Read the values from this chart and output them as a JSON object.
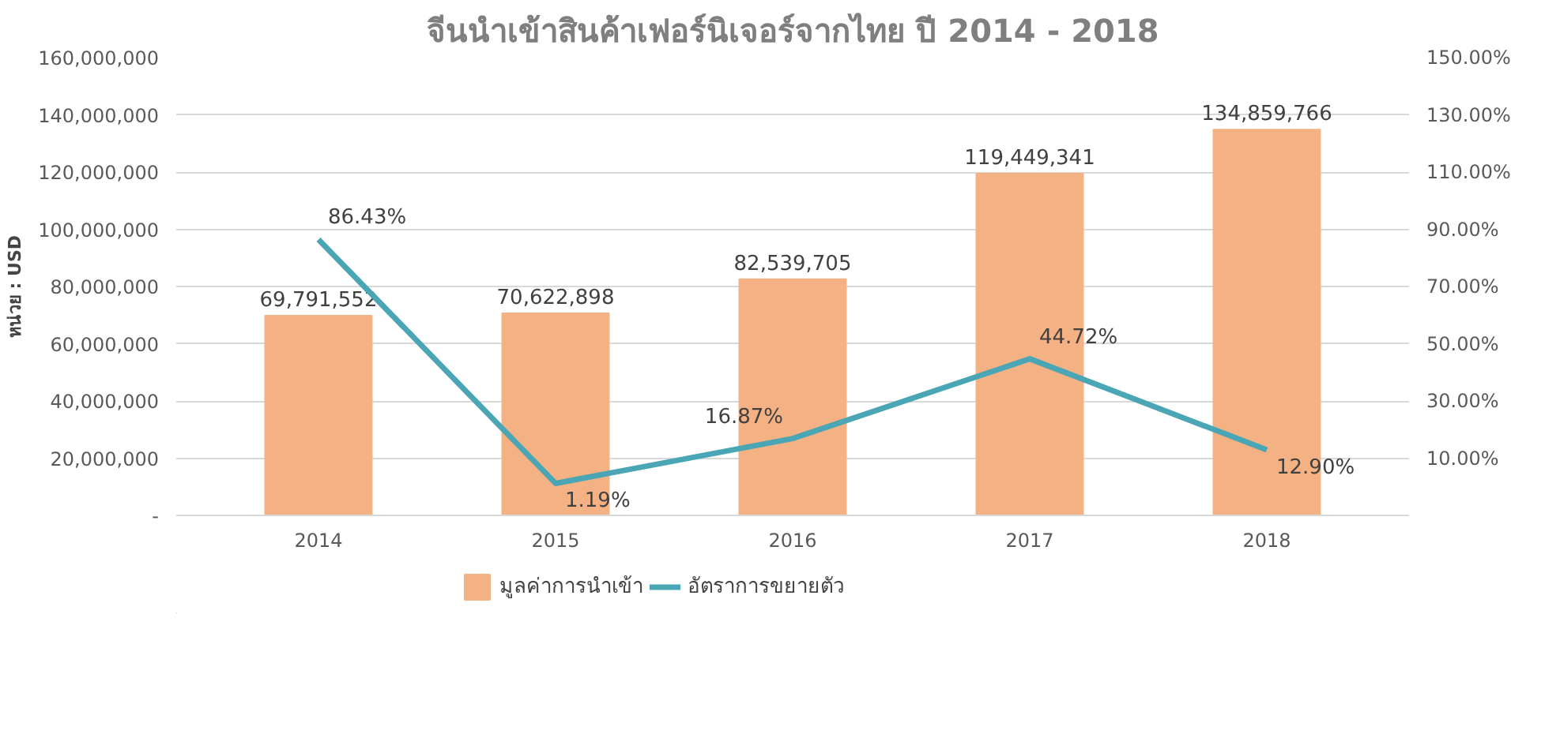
{
  "chart_data": {
    "type": "bar",
    "title": "จีนนำเข้าสินค้าเฟอร์นิเจอร์จากไทย ปี 2014 - 2018",
    "ylabel": "หน่วย : USD",
    "categories": [
      "2014",
      "2015",
      "2016",
      "2017",
      "2018"
    ],
    "series": [
      {
        "name": "มูลค่าการนำเข้า",
        "color": "#f4b183",
        "values": [
          69791552,
          70622898,
          82539705,
          119449341,
          134859766
        ],
        "value_labels": [
          "69,791,552",
          "70,622,898",
          "82,539,705",
          "119,449,341",
          "134,859,766"
        ]
      },
      {
        "name": "อัตราการขยายตัว",
        "type": "line",
        "axis": "y2",
        "color": "#4aa5b5",
        "values": [
          86.43,
          1.19,
          16.87,
          44.72,
          12.9
        ],
        "value_labels": [
          "86.43%",
          "1.19%",
          "16.87%",
          "44.72%",
          "12.90%"
        ]
      }
    ],
    "ylim": [
      0,
      160000000
    ],
    "yticks": [
      {
        "value": 0,
        "label": "-"
      },
      {
        "value": 20000000,
        "label": "20,000,000"
      },
      {
        "value": 40000000,
        "label": "40,000,000"
      },
      {
        "value": 60000000,
        "label": "60,000,000"
      },
      {
        "value": 80000000,
        "label": "80,000,000"
      },
      {
        "value": 100000000,
        "label": "100,000,000"
      },
      {
        "value": 120000000,
        "label": "120,000,000"
      },
      {
        "value": 140000000,
        "label": "140,000,000"
      },
      {
        "value": 160000000,
        "label": "160,000,000"
      }
    ],
    "y2lim": [
      -10,
      150
    ],
    "y2ticks": [
      {
        "value": 10,
        "label": "10.00%"
      },
      {
        "value": 30,
        "label": "30.00%"
      },
      {
        "value": 50,
        "label": "50.00%"
      },
      {
        "value": 70,
        "label": "70.00%"
      },
      {
        "value": 90,
        "label": "90.00%"
      },
      {
        "value": 110,
        "label": "110.00%"
      },
      {
        "value": 130,
        "label": "130.00%"
      },
      {
        "value": 150,
        "label": "150.00%"
      }
    ],
    "grid": "y",
    "legend": "bottom",
    "marker": "none",
    "line_style": "solid"
  }
}
